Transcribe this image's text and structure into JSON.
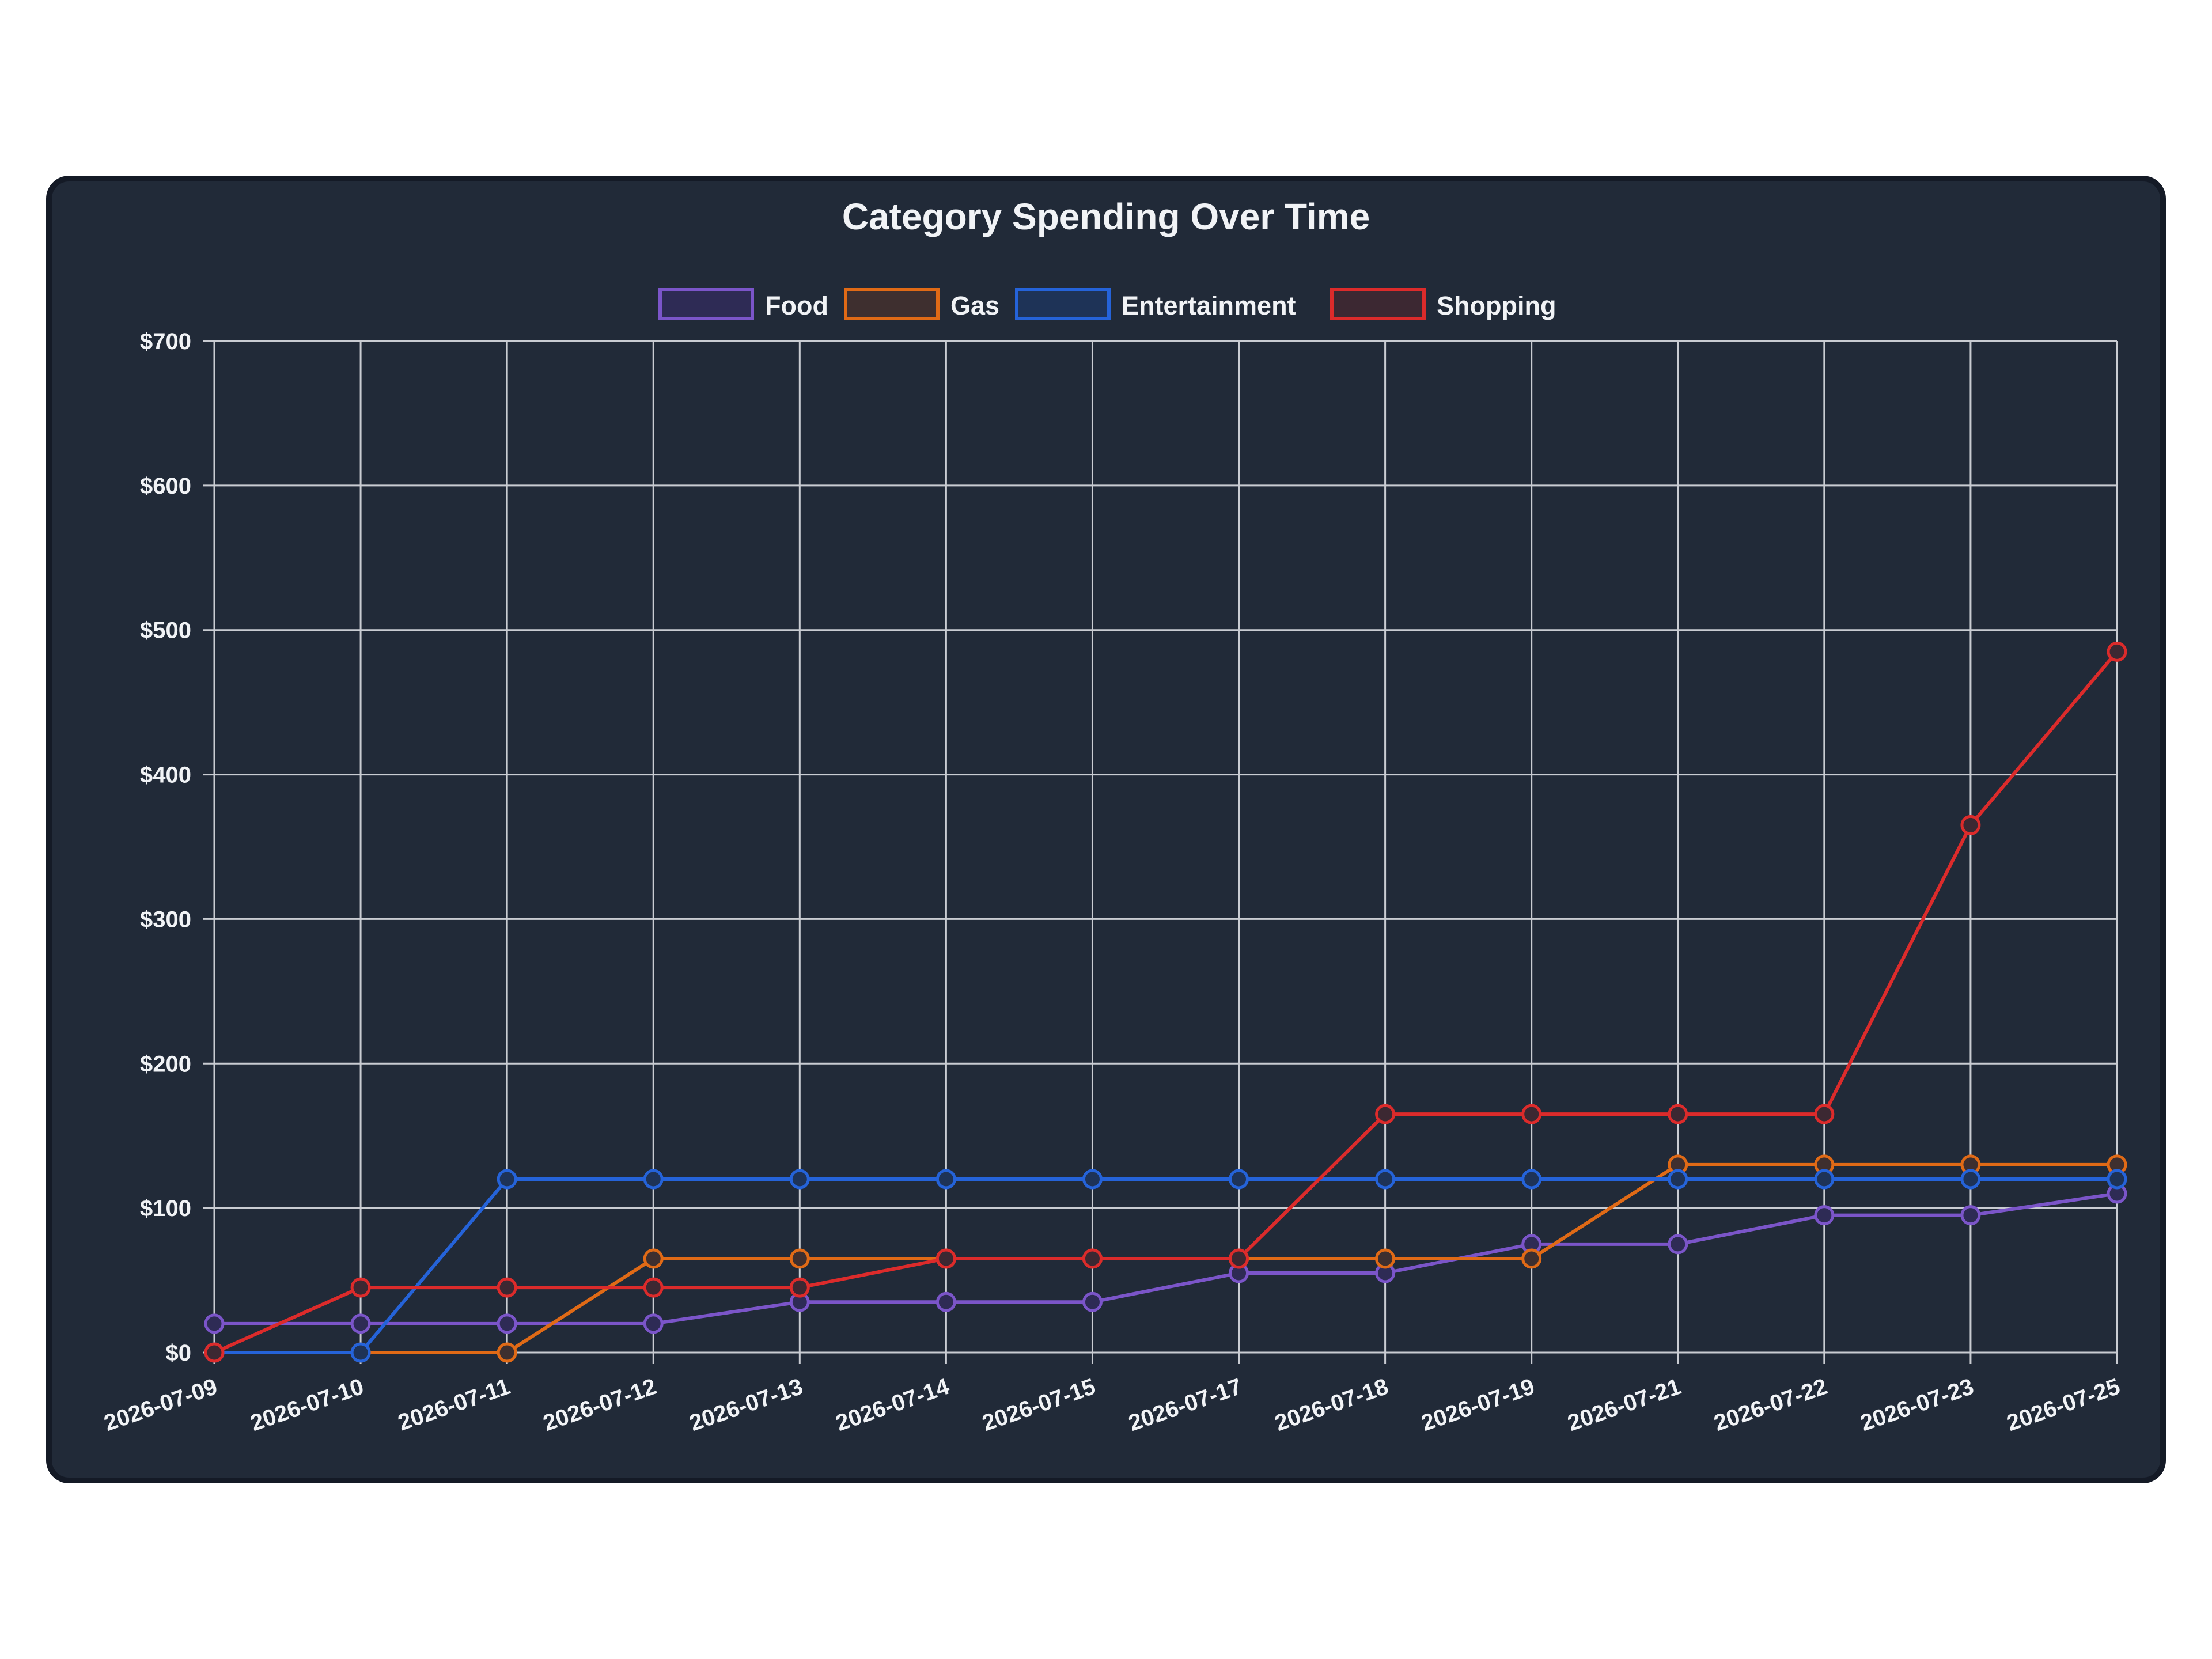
{
  "chart_data": {
    "type": "line",
    "title": "Category Spending Over Time",
    "xlabel": "",
    "ylabel": "",
    "x": [
      "2026-07-09",
      "2026-07-10",
      "2026-07-11",
      "2026-07-12",
      "2026-07-13",
      "2026-07-14",
      "2026-07-15",
      "2026-07-17",
      "2026-07-18",
      "2026-07-19",
      "2026-07-21",
      "2026-07-22",
      "2026-07-23",
      "2026-07-25"
    ],
    "ylim": [
      0,
      700
    ],
    "y_ticks": [
      0,
      100,
      200,
      300,
      400,
      500,
      600,
      700
    ],
    "y_tick_labels": [
      "$0",
      "$100",
      "$200",
      "$300",
      "$400",
      "$500",
      "$600",
      "$700"
    ],
    "grid": true,
    "legend_position": "top",
    "series": [
      {
        "name": "Food",
        "color": "#7b55c9",
        "fill": "#2e2b55",
        "values": [
          20,
          20,
          20,
          20,
          35,
          35,
          35,
          55,
          55,
          75,
          75,
          95,
          95,
          110
        ]
      },
      {
        "name": "Gas",
        "color": "#e06a16",
        "fill": "#3e2f2f",
        "values": [
          0,
          0,
          0,
          65,
          65,
          65,
          65,
          65,
          65,
          65,
          130,
          130,
          130,
          130
        ]
      },
      {
        "name": "Entertainment",
        "color": "#2563d9",
        "fill": "#1e3357",
        "values": [
          0,
          0,
          120,
          120,
          120,
          120,
          120,
          120,
          120,
          120,
          120,
          120,
          120,
          120
        ]
      },
      {
        "name": "Shopping",
        "color": "#dc2b2b",
        "fill": "#3c2832",
        "values": [
          0,
          45,
          45,
          45,
          45,
          65,
          65,
          65,
          165,
          165,
          165,
          165,
          365,
          485
        ]
      }
    ]
  }
}
